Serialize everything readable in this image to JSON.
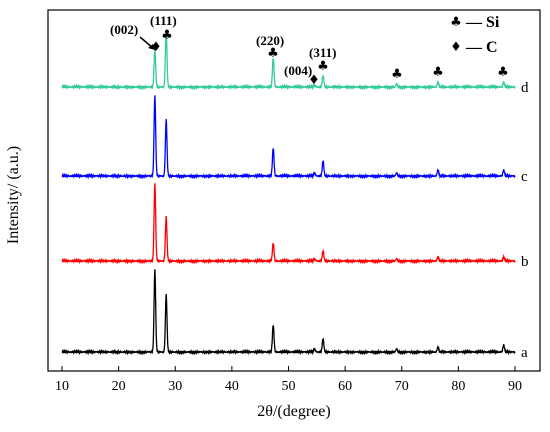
{
  "chart_data": {
    "type": "line",
    "xlabel": "2θ/(degree)",
    "ylabel": "Intensity/ (a.u.)",
    "xlim": [
      10,
      90
    ],
    "x_ticks": [
      "10",
      "20",
      "30",
      "40",
      "50",
      "60",
      "70",
      "80",
      "90"
    ],
    "colors": {
      "a": "#000000",
      "b": "#ff0000",
      "c": "#0000ff",
      "d": "#33cc99"
    },
    "series": [
      {
        "name": "a",
        "baseline": 352,
        "peaks": [
          [
            26.4,
            82
          ],
          [
            28.4,
            57
          ],
          [
            47.3,
            27
          ],
          [
            54.6,
            3
          ],
          [
            56.1,
            13
          ],
          [
            69.1,
            3
          ],
          [
            76.4,
            5
          ],
          [
            88.0,
            7
          ]
        ]
      },
      {
        "name": "b",
        "baseline": 261,
        "peaks": [
          [
            26.4,
            77
          ],
          [
            28.4,
            44
          ],
          [
            47.3,
            18
          ],
          [
            54.6,
            2
          ],
          [
            56.1,
            10
          ],
          [
            69.1,
            2
          ],
          [
            76.4,
            4
          ],
          [
            88.0,
            4
          ]
        ]
      },
      {
        "name": "c",
        "baseline": 176,
        "peaks": [
          [
            26.4,
            80
          ],
          [
            28.4,
            56
          ],
          [
            47.3,
            28
          ],
          [
            54.6,
            3
          ],
          [
            56.1,
            15
          ],
          [
            69.1,
            3
          ],
          [
            76.4,
            6
          ],
          [
            88.0,
            6
          ]
        ]
      },
      {
        "name": "d",
        "baseline": 87,
        "peaks": [
          [
            26.4,
            37
          ],
          [
            28.4,
            55
          ],
          [
            47.3,
            29
          ],
          [
            54.6,
            2
          ],
          [
            56.1,
            11
          ],
          [
            69.1,
            3
          ],
          [
            76.4,
            5
          ],
          [
            88.0,
            5
          ]
        ]
      }
    ],
    "annotations": {
      "p002": "(002)",
      "p111": "(111)",
      "p220": "(220)",
      "p004": "(004)",
      "p311": "(311)"
    },
    "legend": {
      "si_label": "— Si",
      "c_label": "— C",
      "si_icon": "club-icon",
      "c_icon": "diamond-icon",
      "placement": "top-right"
    }
  }
}
